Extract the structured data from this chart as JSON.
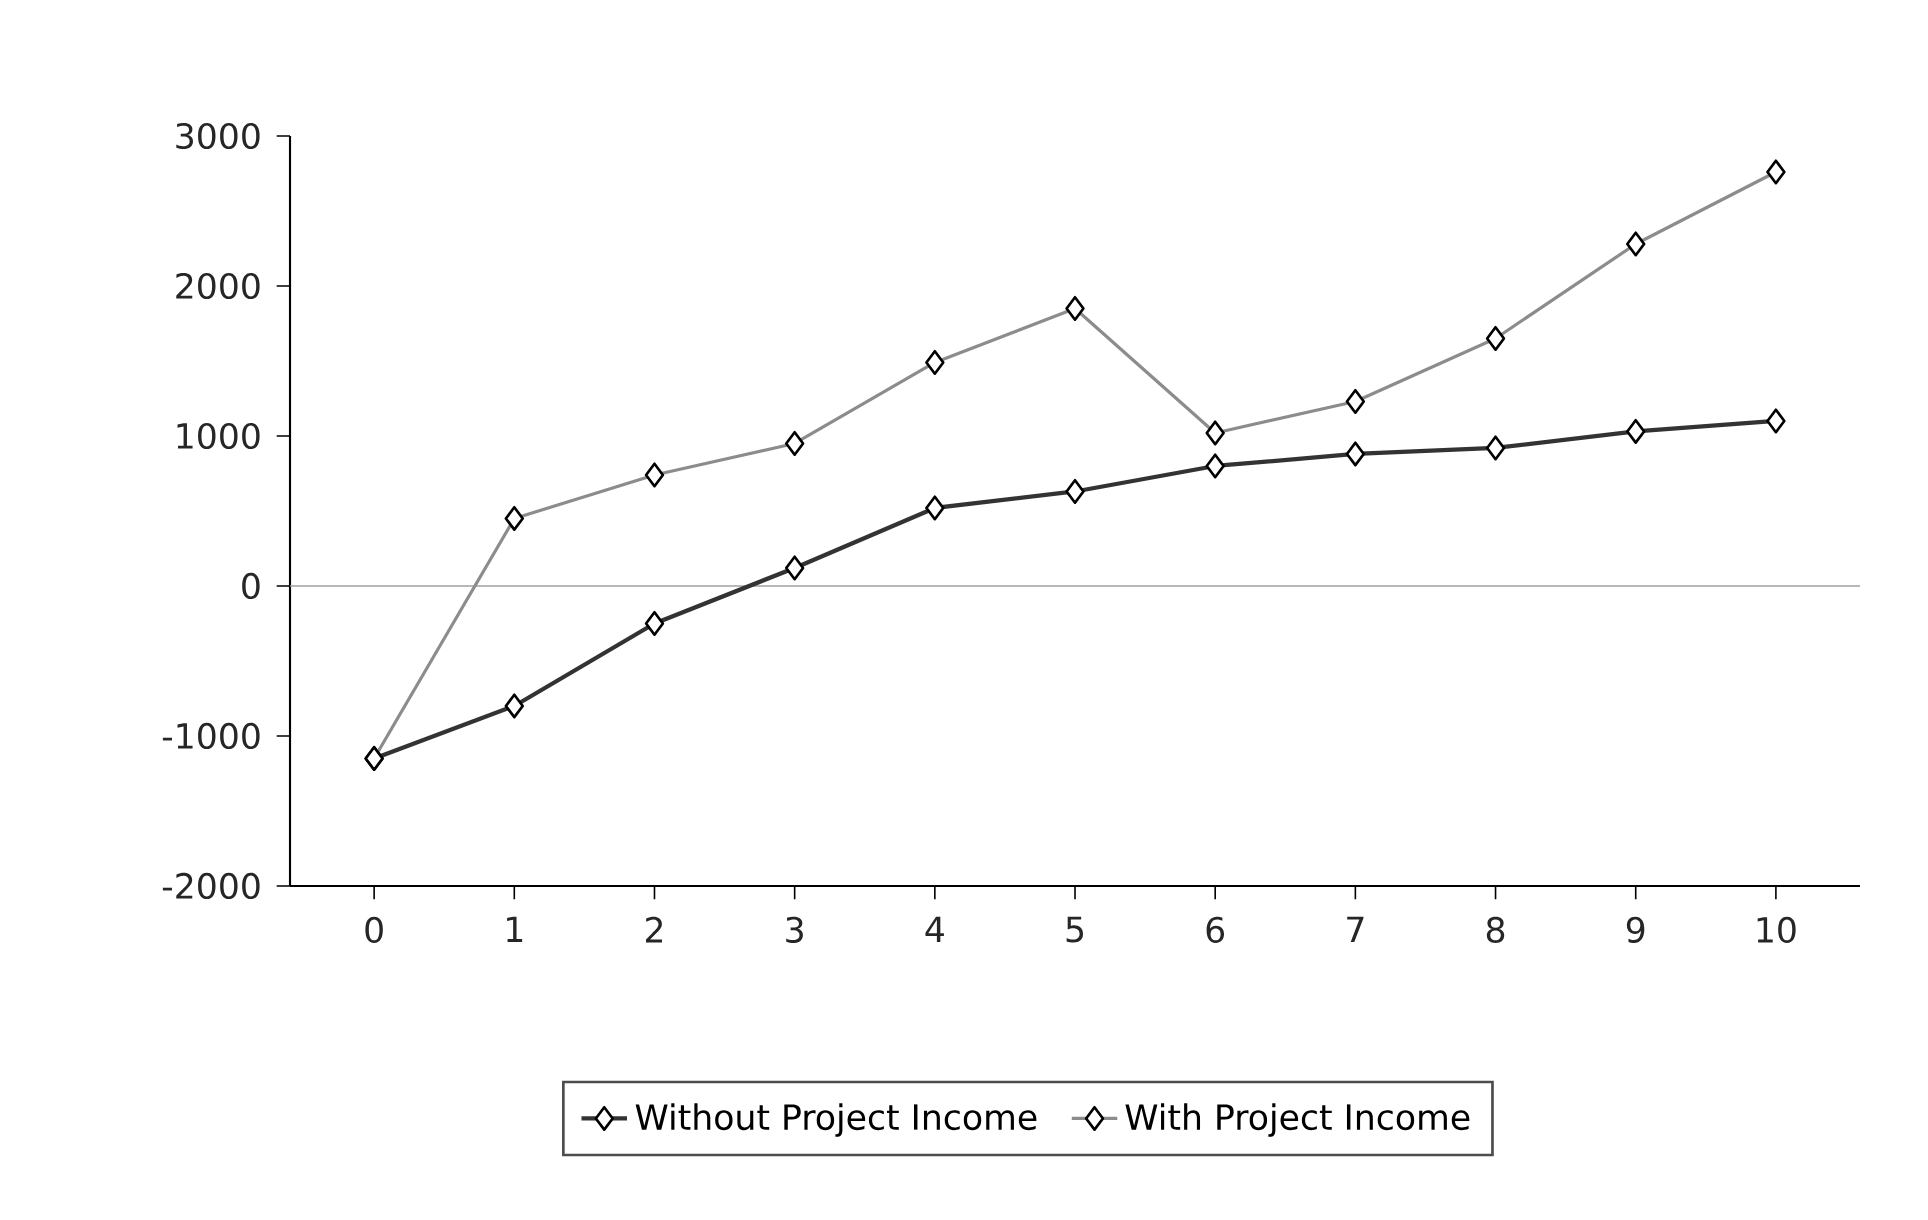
{
  "chart_data": {
    "type": "line",
    "x": [
      0,
      1,
      2,
      3,
      4,
      5,
      6,
      7,
      8,
      9,
      10
    ],
    "xlim": [
      -0.6,
      10.6
    ],
    "xticks": [
      0,
      1,
      2,
      3,
      4,
      5,
      6,
      7,
      8,
      9,
      10
    ],
    "ylim": [
      -2000,
      3000
    ],
    "yticks": [
      -2000,
      -1000,
      0,
      1000,
      2000,
      3000
    ],
    "marker": "diamond",
    "line_style": "solid",
    "grid": false,
    "legend": "bottom",
    "series": [
      {
        "name": "Without Project Income",
        "color": "#333333",
        "values": [
          -1150,
          -800,
          -250,
          120,
          520,
          630,
          800,
          880,
          920,
          1030,
          1100
        ]
      },
      {
        "name": "With Project Income",
        "color": "#8c8c8c",
        "values": [
          -1150,
          450,
          740,
          950,
          1490,
          1850,
          1020,
          1230,
          1650,
          2280,
          2760
        ]
      }
    ],
    "ref_lines": [
      {
        "axis": "y",
        "value": 0,
        "color": "#a0a0a0"
      }
    ]
  }
}
